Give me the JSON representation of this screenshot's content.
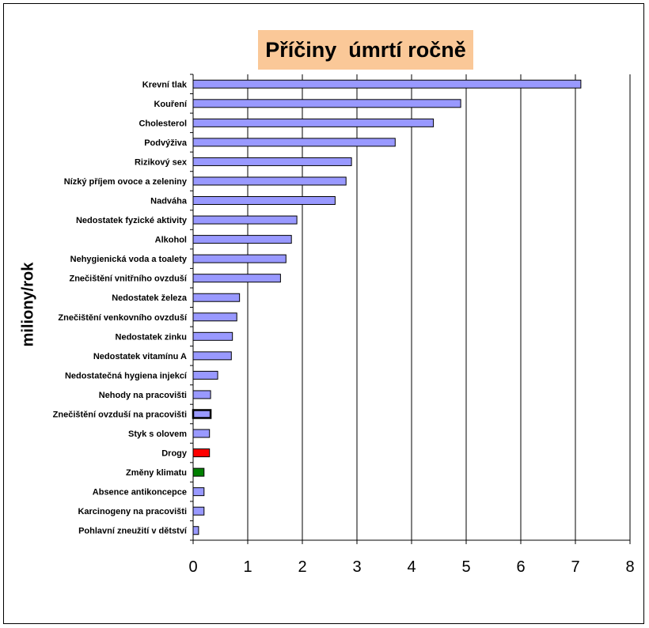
{
  "chart_data": {
    "type": "bar",
    "orientation": "horizontal",
    "title": "Příčiny  úmrtí ročně",
    "xlabel": "",
    "ylabel": "miliony/rok",
    "xlim": [
      0,
      8
    ],
    "xticks": [
      0,
      1,
      2,
      3,
      4,
      5,
      6,
      7,
      8
    ],
    "grid": "vertical",
    "legend": "none",
    "categories": [
      "Krevní tlak",
      "Kouření",
      "Cholesterol",
      "Podvýživa",
      "Rizikový sex",
      "Nízký příjem ovoce a zeleniny",
      "Nadváha",
      "Nedostatek fyzické aktivity",
      "Alkohol",
      "Nehygienická voda a toalety",
      "Znečištění vnitřního ovzduší",
      "Nedostatek železa",
      "Znečištění venkovního ovzduší",
      "Nedostatek zinku",
      "Nedostatek vitamínu A",
      "Nedostatečná hygiena injekcí",
      "Nehody na pracovišti",
      "Znečištění ovzduší na pracovišti",
      "Styk s olovem",
      "Drogy",
      "Změny klimatu",
      "Absence antikoncepce",
      "Karcinogeny na pracovišti",
      "Pohlavní zneužití v dětství"
    ],
    "values": [
      7.1,
      4.9,
      4.4,
      3.7,
      2.9,
      2.8,
      2.6,
      1.9,
      1.8,
      1.7,
      1.6,
      0.85,
      0.8,
      0.72,
      0.7,
      0.45,
      0.32,
      0.32,
      0.3,
      0.3,
      0.2,
      0.2,
      0.2,
      0.1
    ],
    "colors": {
      "default": "#9999ff",
      "Drogy": "#ff0000",
      "Změny klimatu": "#008000"
    },
    "highlight_border": "Znečištění ovzduší na pracovišti"
  }
}
